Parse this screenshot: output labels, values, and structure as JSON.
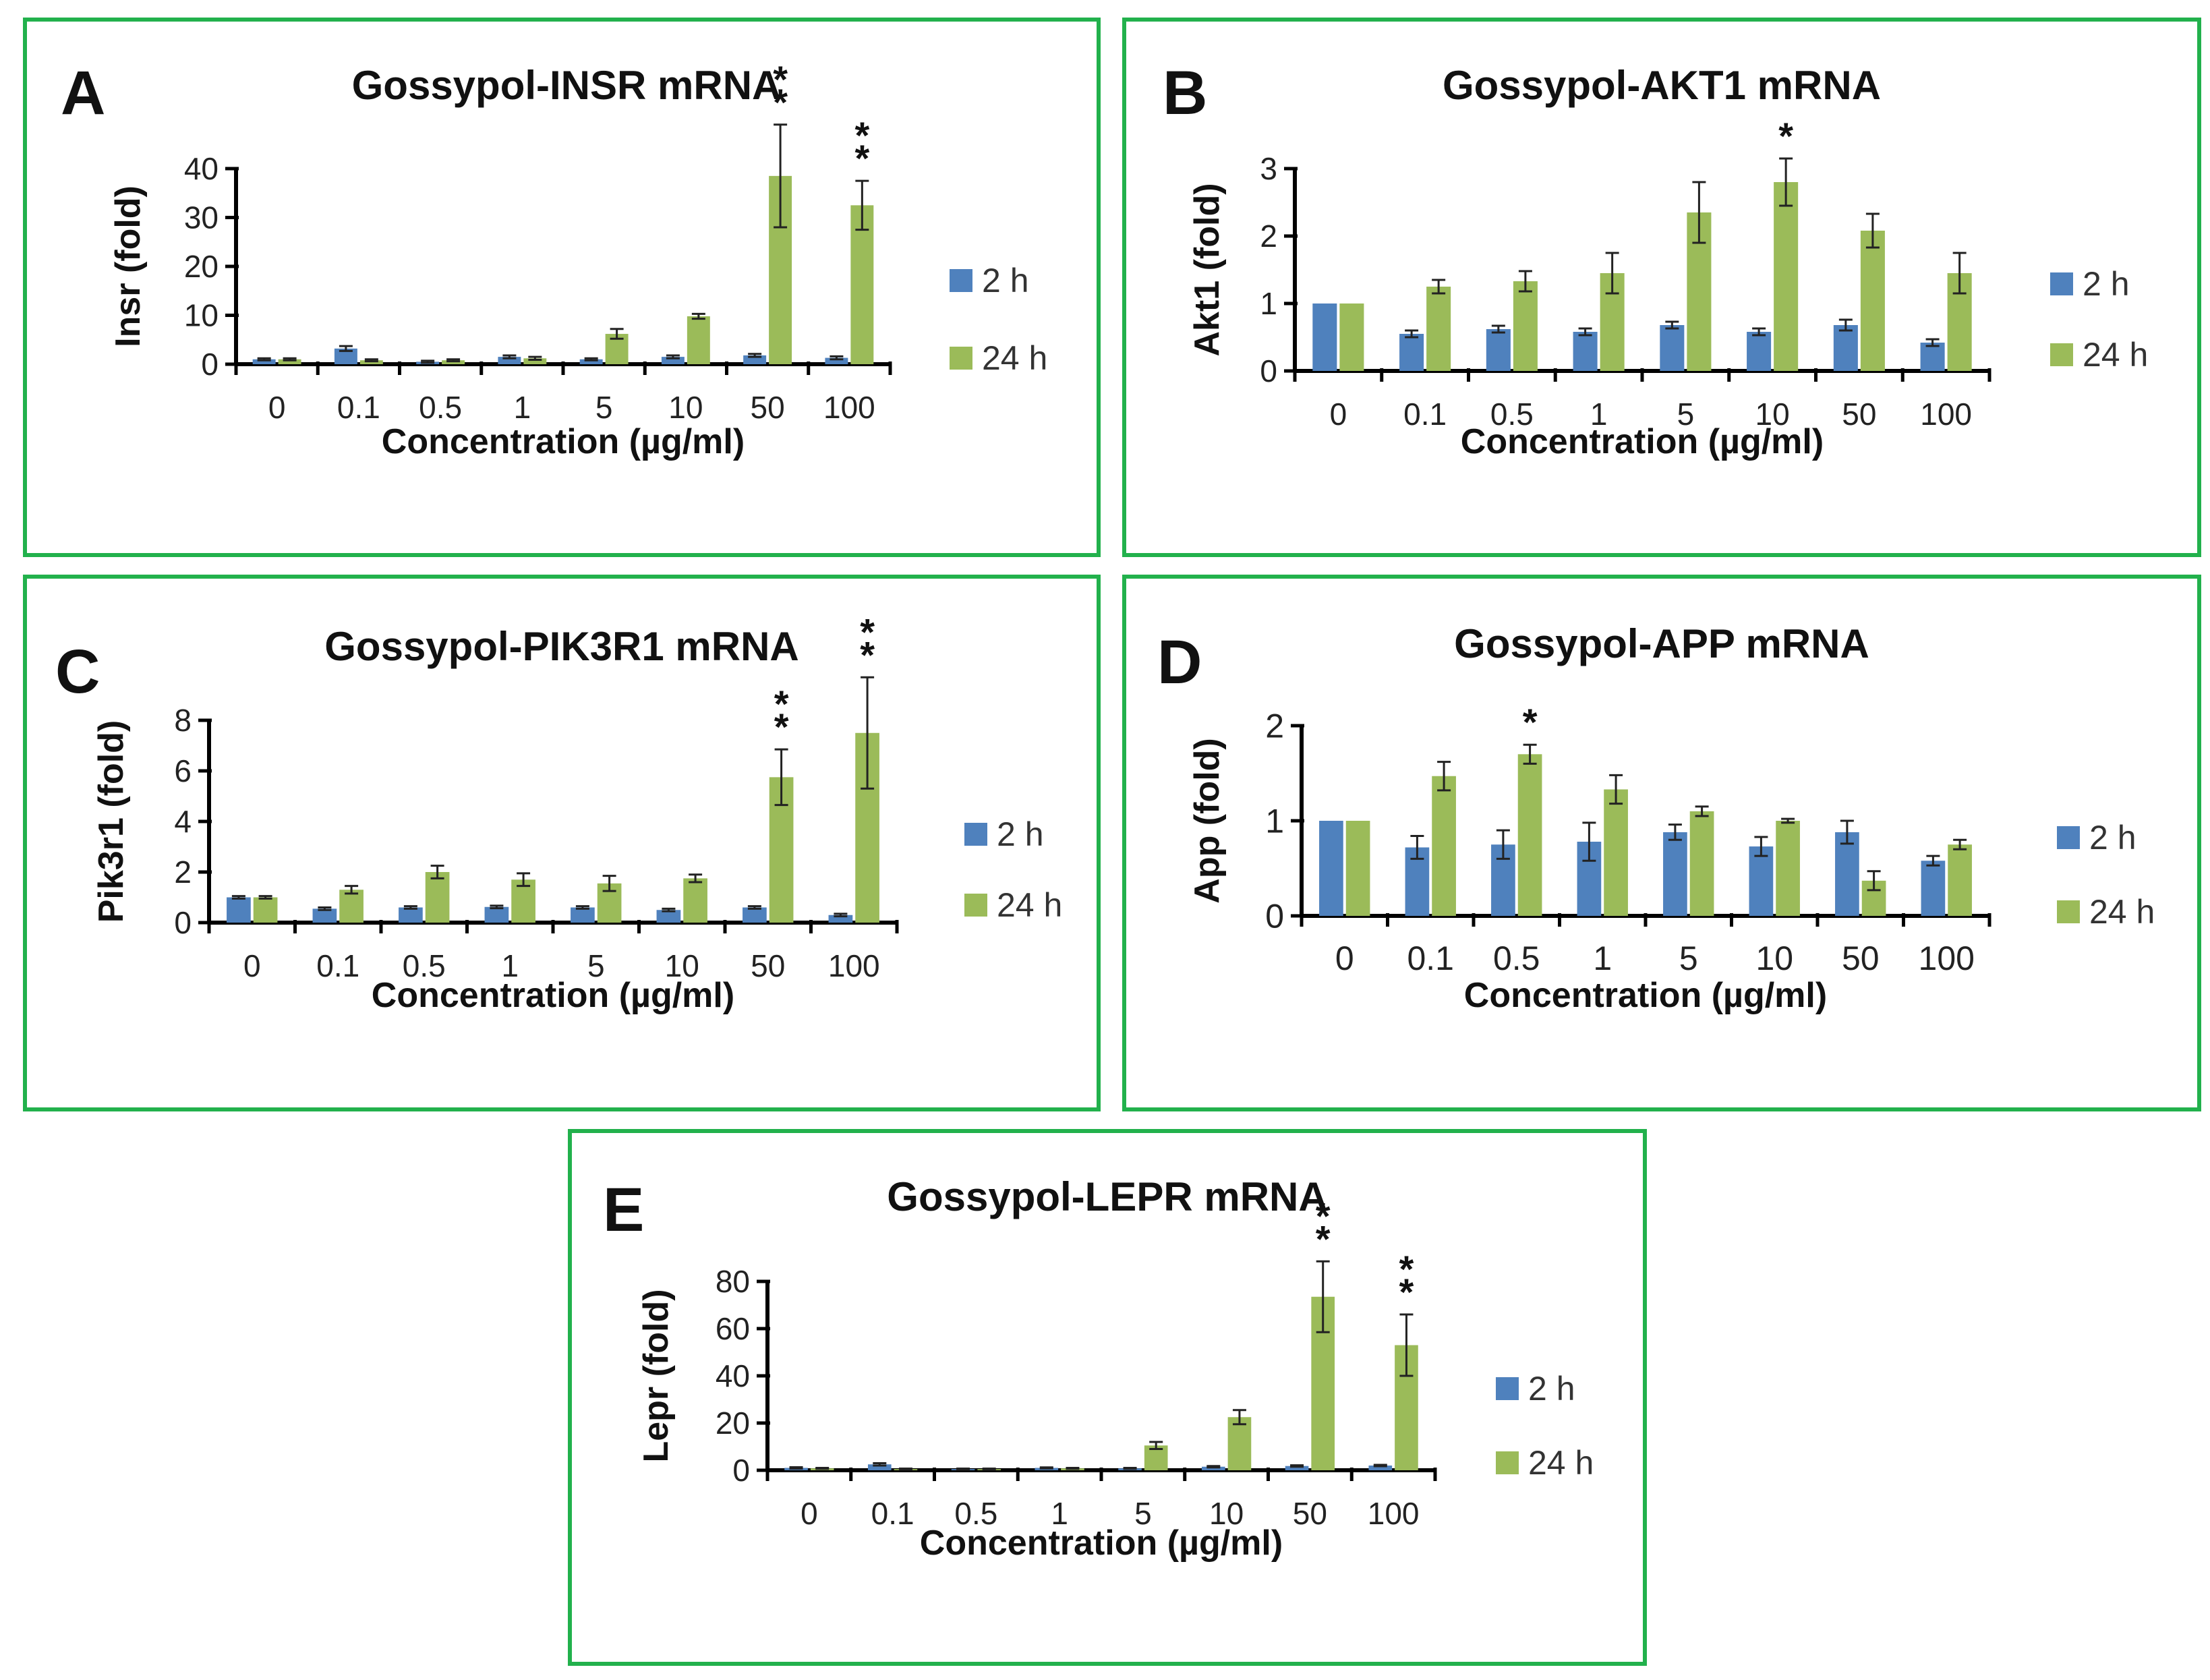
{
  "legend": {
    "series_2h": "2 h",
    "series_24h": "24 h"
  },
  "colors": {
    "blue": "#4f81bd",
    "green": "#9bbb59",
    "frame": "#22b14c"
  },
  "chart_data": [
    {
      "id": "A",
      "letter": "A",
      "type": "bar",
      "title": "Gossypol-INSR mRNA",
      "xlabel": "Concentration (µg/ml)",
      "ylabel": "Insr (fold)",
      "categories": [
        "0",
        "0.1",
        "0.5",
        "1",
        "5",
        "10",
        "50",
        "100"
      ],
      "ylim": [
        0,
        40
      ],
      "yticks": [
        0,
        10,
        20,
        30,
        40
      ],
      "series": [
        {
          "name": "2 h",
          "values": [
            1,
            3.2,
            0.5,
            1.5,
            1,
            1.5,
            1.8,
            1.3
          ],
          "errors": [
            0.2,
            0.5,
            0.2,
            0.3,
            0.2,
            0.3,
            0.3,
            0.3
          ]
        },
        {
          "name": "24 h",
          "values": [
            1,
            0.8,
            0.8,
            1.2,
            6.2,
            9.8,
            38.5,
            32.5
          ],
          "errors": [
            0.2,
            0.2,
            0.2,
            0.3,
            1,
            0.5,
            10.5,
            5
          ]
        }
      ],
      "annotations": [
        "",
        "",
        "",
        "",
        "",
        "",
        "**",
        "**"
      ]
    },
    {
      "id": "B",
      "letter": "B",
      "type": "bar",
      "title": "Gossypol-AKT1 mRNA",
      "xlabel": "Concentration (µg/ml)",
      "ylabel": "Akt1 (fold)",
      "categories": [
        "0",
        "0.1",
        "0.5",
        "1",
        "5",
        "10",
        "50",
        "100"
      ],
      "ylim": [
        0,
        3
      ],
      "yticks": [
        0,
        1,
        2,
        3
      ],
      "series": [
        {
          "name": "2 h",
          "values": [
            1,
            0.55,
            0.62,
            0.58,
            0.68,
            0.58,
            0.68,
            0.42
          ],
          "errors": [
            0,
            0.05,
            0.05,
            0.05,
            0.05,
            0.05,
            0.08,
            0.05
          ]
        },
        {
          "name": "24 h",
          "values": [
            1,
            1.25,
            1.33,
            1.45,
            2.35,
            2.8,
            2.08,
            1.45
          ],
          "errors": [
            0,
            0.1,
            0.15,
            0.3,
            0.45,
            0.35,
            0.25,
            0.3
          ]
        }
      ],
      "annotations": [
        "",
        "",
        "",
        "",
        "",
        "*",
        "",
        ""
      ]
    },
    {
      "id": "C",
      "letter": "C",
      "type": "bar",
      "title": "Gossypol-PIK3R1 mRNA",
      "xlabel": "Concentration (µg/ml)",
      "ylabel": "Pik3r1 (fold)",
      "categories": [
        "0",
        "0.1",
        "0.5",
        "1",
        "5",
        "10",
        "50",
        "100"
      ],
      "ylim": [
        0,
        8
      ],
      "yticks": [
        0,
        2,
        4,
        6,
        8
      ],
      "series": [
        {
          "name": "2 h",
          "values": [
            1,
            0.55,
            0.6,
            0.62,
            0.6,
            0.5,
            0.6,
            0.3
          ],
          "errors": [
            0.05,
            0.05,
            0.05,
            0.05,
            0.05,
            0.05,
            0.05,
            0.05
          ]
        },
        {
          "name": "24 h",
          "values": [
            1,
            1.3,
            2,
            1.7,
            1.55,
            1.75,
            5.75,
            7.5
          ],
          "errors": [
            0.05,
            0.15,
            0.25,
            0.25,
            0.3,
            0.15,
            1.1,
            2.2
          ]
        }
      ],
      "annotations": [
        "",
        "",
        "",
        "",
        "",
        "",
        "**",
        "**"
      ]
    },
    {
      "id": "D",
      "letter": "D",
      "type": "bar",
      "title": "Gossypol-APP mRNA",
      "xlabel": "Concentration (µg/ml)",
      "ylabel": "App (fold)",
      "categories": [
        "0",
        "0.1",
        "0.5",
        "1",
        "5",
        "10",
        "50",
        "100"
      ],
      "ylim": [
        0,
        2
      ],
      "yticks": [
        0,
        1,
        2
      ],
      "series": [
        {
          "name": "2 h",
          "values": [
            1,
            0.72,
            0.75,
            0.78,
            0.88,
            0.73,
            0.88,
            0.58
          ],
          "errors": [
            0,
            0.12,
            0.15,
            0.2,
            0.08,
            0.1,
            0.12,
            0.05
          ]
        },
        {
          "name": "24 h",
          "values": [
            1,
            1.47,
            1.7,
            1.33,
            1.1,
            1.0,
            0.37,
            0.75
          ],
          "errors": [
            0,
            0.15,
            0.1,
            0.15,
            0.05,
            0.02,
            0.1,
            0.05
          ]
        }
      ],
      "annotations": [
        "",
        "",
        "*",
        "",
        "",
        "",
        "",
        ""
      ]
    },
    {
      "id": "E",
      "letter": "E",
      "type": "bar",
      "title": "Gossypol-LEPR mRNA",
      "xlabel": "Concentration (µg/ml)",
      "ylabel": "Lepr (fold)",
      "categories": [
        "0",
        "0.1",
        "0.5",
        "1",
        "5",
        "10",
        "50",
        "100"
      ],
      "ylim": [
        0,
        80
      ],
      "yticks": [
        0,
        20,
        40,
        60,
        80
      ],
      "series": [
        {
          "name": "2 h",
          "values": [
            1,
            2.5,
            0.5,
            1,
            0.8,
            1.5,
            1.8,
            2
          ],
          "errors": [
            0.3,
            0.5,
            0.2,
            0.2,
            0.2,
            0.3,
            0.3,
            0.3
          ]
        },
        {
          "name": "24 h",
          "values": [
            0.8,
            0.5,
            0.5,
            0.8,
            10.5,
            22.5,
            73.5,
            53
          ],
          "errors": [
            0.2,
            0.2,
            0.2,
            0.2,
            1.5,
            3,
            15,
            13
          ]
        }
      ],
      "annotations": [
        "",
        "",
        "",
        "",
        "",
        "",
        "**",
        "**"
      ]
    }
  ]
}
